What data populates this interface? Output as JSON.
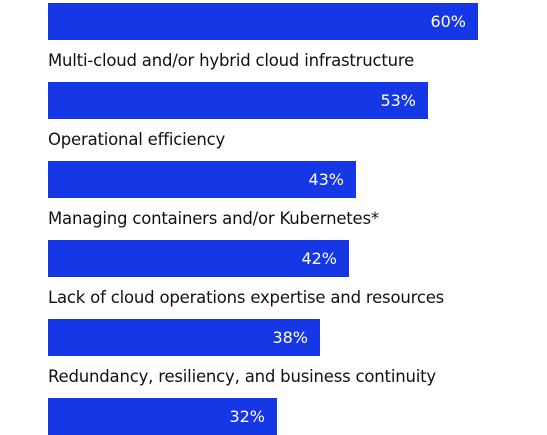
{
  "chart_data": {
    "type": "bar",
    "orientation": "horizontal",
    "categories": [
      "",
      "Multi-cloud and/or hybrid cloud infrastructure",
      "Operational efficiency",
      "Managing containers and/or Kubernetes*",
      "Lack of cloud operations expertise and resources",
      "Redundancy, resiliency, and business continuity"
    ],
    "values": [
      60,
      53,
      43,
      42,
      38,
      32
    ],
    "value_labels": [
      "60%",
      "53%",
      "43%",
      "42%",
      "38%",
      "32%"
    ],
    "xlim": [
      0,
      100
    ],
    "bar_color": "#1537e6",
    "value_label_color": "#ffffff",
    "label_color": "#111111",
    "grid": false,
    "legend": "none"
  }
}
